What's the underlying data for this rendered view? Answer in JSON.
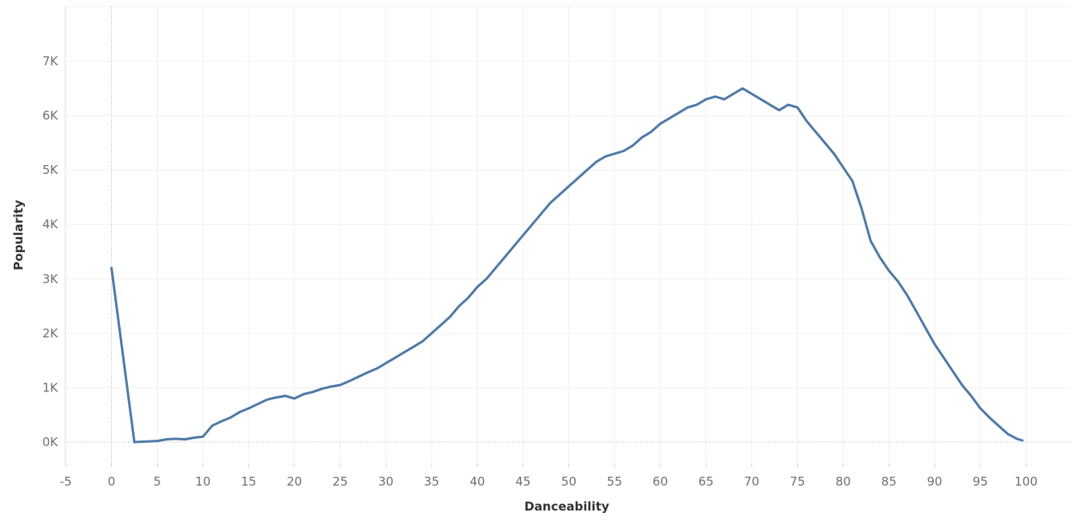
{
  "chart_data": {
    "type": "line",
    "title": "",
    "xlabel": "Danceability",
    "ylabel": "Popularity",
    "xlim": [
      -5,
      100
    ],
    "ylim": [
      -0.4,
      7.9
    ],
    "x_ticks": [
      -5,
      0,
      5,
      10,
      15,
      20,
      25,
      30,
      35,
      40,
      45,
      50,
      55,
      60,
      65,
      70,
      75,
      80,
      85,
      90,
      95,
      100
    ],
    "x_tick_labels": [
      "-5",
      "0",
      "5",
      "10",
      "15",
      "20",
      "25",
      "30",
      "35",
      "40",
      "45",
      "50",
      "55",
      "60",
      "65",
      "70",
      "75",
      "80",
      "85",
      "90",
      "95",
      "100"
    ],
    "y_ticks": [
      0,
      1,
      2,
      3,
      4,
      5,
      6,
      7
    ],
    "y_tick_labels": [
      "0K",
      "1K",
      "2K",
      "3K",
      "4K",
      "5K",
      "6K",
      "7K"
    ],
    "y_unit": "thousands",
    "grid": true,
    "legend": "none",
    "series": [
      {
        "color": "#4e79a7",
        "x": [
          0,
          2.5,
          5,
          6,
          7,
          8,
          9,
          10,
          11,
          12,
          13,
          14,
          15,
          16,
          17,
          18,
          19,
          20,
          21,
          22,
          23,
          24,
          25,
          26,
          27,
          28,
          29,
          30,
          31,
          32,
          33,
          34,
          35,
          36,
          37,
          38,
          39,
          40,
          41,
          42,
          43,
          44,
          45,
          46,
          47,
          48,
          49,
          50,
          51,
          52,
          53,
          54,
          55,
          56,
          57,
          58,
          59,
          60,
          61,
          62,
          63,
          64,
          65,
          66,
          67,
          68,
          69,
          70,
          71,
          72,
          73,
          74,
          75,
          76,
          77,
          78,
          79,
          80,
          81,
          82,
          83,
          84,
          85,
          86,
          87,
          88,
          89,
          90,
          91,
          92,
          93,
          94,
          95,
          96,
          97,
          98,
          99,
          99.6
        ],
        "y": [
          3.2,
          0.0,
          0.02,
          0.05,
          0.06,
          0.05,
          0.08,
          0.1,
          0.3,
          0.38,
          0.45,
          0.55,
          0.62,
          0.7,
          0.78,
          0.82,
          0.85,
          0.8,
          0.88,
          0.92,
          0.98,
          1.02,
          1.05,
          1.12,
          1.2,
          1.28,
          1.35,
          1.45,
          1.55,
          1.65,
          1.75,
          1.85,
          2.0,
          2.15,
          2.3,
          2.5,
          2.65,
          2.85,
          3.0,
          3.2,
          3.4,
          3.6,
          3.8,
          4.0,
          4.2,
          4.4,
          4.55,
          4.7,
          4.85,
          5.0,
          5.15,
          5.25,
          5.3,
          5.35,
          5.45,
          5.6,
          5.7,
          5.85,
          5.95,
          6.05,
          6.15,
          6.2,
          6.3,
          6.35,
          6.3,
          6.4,
          6.5,
          6.4,
          6.3,
          6.2,
          6.1,
          6.2,
          6.15,
          5.9,
          5.7,
          5.5,
          5.3,
          5.05,
          4.8,
          4.3,
          3.7,
          3.4,
          3.15,
          2.95,
          2.7,
          2.4,
          2.1,
          1.8,
          1.55,
          1.3,
          1.05,
          0.85,
          0.62,
          0.45,
          0.3,
          0.15,
          0.06,
          0.03
        ]
      }
    ]
  }
}
